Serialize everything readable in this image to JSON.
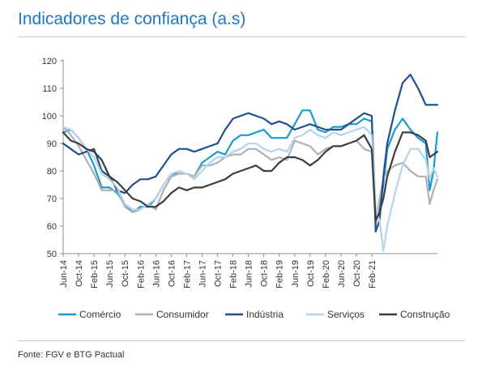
{
  "header": {
    "title": "Indicadores de confiança (a.s)"
  },
  "footer": {
    "source": "Fonte: FGV e BTG Pactual"
  },
  "chart_data": {
    "type": "line",
    "title": "Indicadores de confiança (a.s)",
    "xlabel": "",
    "ylabel": "",
    "ylim": [
      50,
      120
    ],
    "yticks": [
      50,
      60,
      70,
      80,
      90,
      100,
      110,
      120
    ],
    "grid": false,
    "legend": "bottom",
    "x_start": "Jun-14",
    "x_end": "Apr-21",
    "xtick_labels": [
      "Jun-14",
      "Oct-14",
      "Feb-15",
      "Jun-15",
      "Oct-15",
      "Feb-16",
      "Jun-16",
      "Oct-16",
      "Feb-17",
      "Jun-17",
      "Oct-17",
      "Feb-18",
      "Jun-18",
      "Oct-18",
      "Feb-19",
      "Jun-19",
      "Oct-19",
      "Feb-20",
      "Jun-20",
      "Oct-20",
      "Feb-21"
    ],
    "series": [
      {
        "name": "Comércio",
        "color": "#1a9bd0",
        "width": 2.2,
        "points": [
          [
            0,
            94
          ],
          [
            2,
            95
          ],
          [
            4,
            92
          ],
          [
            6,
            88
          ],
          [
            8,
            82
          ],
          [
            10,
            74
          ],
          [
            12,
            74
          ],
          [
            14,
            72
          ],
          [
            16,
            68
          ],
          [
            18,
            65
          ],
          [
            20,
            67
          ],
          [
            22,
            67
          ],
          [
            24,
            70
          ],
          [
            26,
            75
          ],
          [
            28,
            79
          ],
          [
            30,
            79
          ],
          [
            32,
            79
          ],
          [
            34,
            78
          ],
          [
            36,
            83
          ],
          [
            38,
            85
          ],
          [
            40,
            87
          ],
          [
            42,
            86
          ],
          [
            44,
            91
          ],
          [
            46,
            93
          ],
          [
            48,
            93
          ],
          [
            50,
            94
          ],
          [
            52,
            95
          ],
          [
            54,
            92
          ],
          [
            56,
            92
          ],
          [
            58,
            92
          ],
          [
            60,
            97
          ],
          [
            62,
            102
          ],
          [
            64,
            102
          ],
          [
            66,
            95
          ],
          [
            68,
            94
          ],
          [
            70,
            96
          ],
          [
            72,
            96
          ],
          [
            74,
            97
          ],
          [
            76,
            97
          ],
          [
            78,
            99
          ],
          [
            80,
            98
          ],
          [
            81,
            65
          ],
          [
            82,
            66
          ],
          [
            83,
            75
          ],
          [
            84,
            88
          ],
          [
            86,
            95
          ],
          [
            88,
            99
          ],
          [
            90,
            95
          ],
          [
            92,
            92
          ],
          [
            94,
            90
          ],
          [
            95,
            73
          ],
          [
            96,
            80
          ],
          [
            97,
            94
          ]
        ]
      },
      {
        "name": "Consumidor",
        "color": "#b0b0b0",
        "width": 2.2,
        "points": [
          [
            0,
            96
          ],
          [
            2,
            93
          ],
          [
            4,
            89
          ],
          [
            6,
            84
          ],
          [
            8,
            79
          ],
          [
            10,
            73
          ],
          [
            12,
            73
          ],
          [
            14,
            73
          ],
          [
            16,
            67
          ],
          [
            18,
            65
          ],
          [
            20,
            66
          ],
          [
            22,
            68
          ],
          [
            24,
            66
          ],
          [
            26,
            73
          ],
          [
            28,
            78
          ],
          [
            30,
            79
          ],
          [
            32,
            79
          ],
          [
            34,
            78
          ],
          [
            36,
            82
          ],
          [
            38,
            82
          ],
          [
            40,
            83
          ],
          [
            42,
            85
          ],
          [
            44,
            86
          ],
          [
            46,
            86
          ],
          [
            48,
            88
          ],
          [
            50,
            88
          ],
          [
            52,
            86
          ],
          [
            54,
            84
          ],
          [
            56,
            85
          ],
          [
            58,
            84
          ],
          [
            60,
            91
          ],
          [
            62,
            90
          ],
          [
            64,
            89
          ],
          [
            66,
            86
          ],
          [
            68,
            88
          ],
          [
            70,
            89
          ],
          [
            72,
            89
          ],
          [
            74,
            90
          ],
          [
            76,
            91
          ],
          [
            78,
            88
          ],
          [
            80,
            87
          ],
          [
            81,
            60
          ],
          [
            82,
            70
          ],
          [
            83,
            77
          ],
          [
            84,
            80
          ],
          [
            86,
            82
          ],
          [
            88,
            83
          ],
          [
            90,
            80
          ],
          [
            92,
            78
          ],
          [
            94,
            78
          ],
          [
            95,
            68
          ],
          [
            96,
            73
          ],
          [
            97,
            77
          ]
        ]
      },
      {
        "name": "Indústria",
        "color": "#1f4f8f",
        "width": 2.2,
        "points": [
          [
            0,
            90
          ],
          [
            2,
            88
          ],
          [
            4,
            86
          ],
          [
            6,
            87
          ],
          [
            8,
            88
          ],
          [
            10,
            80
          ],
          [
            12,
            78
          ],
          [
            14,
            73
          ],
          [
            16,
            72
          ],
          [
            18,
            75
          ],
          [
            20,
            77
          ],
          [
            22,
            77
          ],
          [
            24,
            78
          ],
          [
            26,
            82
          ],
          [
            28,
            86
          ],
          [
            30,
            88
          ],
          [
            32,
            88
          ],
          [
            34,
            87
          ],
          [
            36,
            88
          ],
          [
            38,
            89
          ],
          [
            40,
            90
          ],
          [
            42,
            95
          ],
          [
            44,
            99
          ],
          [
            46,
            100
          ],
          [
            48,
            101
          ],
          [
            50,
            100
          ],
          [
            52,
            99
          ],
          [
            54,
            97
          ],
          [
            56,
            98
          ],
          [
            58,
            97
          ],
          [
            60,
            95
          ],
          [
            62,
            96
          ],
          [
            64,
            97
          ],
          [
            66,
            96
          ],
          [
            68,
            95
          ],
          [
            70,
            95
          ],
          [
            72,
            95
          ],
          [
            74,
            97
          ],
          [
            76,
            99
          ],
          [
            78,
            101
          ],
          [
            80,
            100
          ],
          [
            81,
            58
          ],
          [
            82,
            62
          ],
          [
            83,
            78
          ],
          [
            84,
            90
          ],
          [
            86,
            102
          ],
          [
            88,
            112
          ],
          [
            90,
            115
          ],
          [
            92,
            110
          ],
          [
            94,
            104
          ],
          [
            96,
            104
          ],
          [
            97,
            104
          ]
        ]
      },
      {
        "name": "Serviços",
        "color": "#b4d4ec",
        "width": 2.2,
        "points": [
          [
            0,
            96
          ],
          [
            2,
            95
          ],
          [
            4,
            92
          ],
          [
            6,
            88
          ],
          [
            8,
            85
          ],
          [
            10,
            79
          ],
          [
            12,
            77
          ],
          [
            14,
            74
          ],
          [
            16,
            68
          ],
          [
            18,
            66
          ],
          [
            20,
            66
          ],
          [
            22,
            68
          ],
          [
            24,
            70
          ],
          [
            26,
            75
          ],
          [
            28,
            79
          ],
          [
            30,
            80
          ],
          [
            32,
            79
          ],
          [
            34,
            77
          ],
          [
            36,
            80
          ],
          [
            38,
            83
          ],
          [
            40,
            85
          ],
          [
            42,
            85
          ],
          [
            44,
            87
          ],
          [
            46,
            88
          ],
          [
            48,
            90
          ],
          [
            50,
            90
          ],
          [
            52,
            88
          ],
          [
            54,
            87
          ],
          [
            56,
            88
          ],
          [
            58,
            87
          ],
          [
            60,
            92
          ],
          [
            62,
            93
          ],
          [
            64,
            95
          ],
          [
            66,
            93
          ],
          [
            68,
            92
          ],
          [
            70,
            94
          ],
          [
            72,
            93
          ],
          [
            74,
            94
          ],
          [
            76,
            95
          ],
          [
            78,
            96
          ],
          [
            80,
            93
          ],
          [
            81,
            67
          ],
          [
            82,
            62
          ],
          [
            83,
            51
          ],
          [
            84,
            60
          ],
          [
            86,
            72
          ],
          [
            88,
            82
          ],
          [
            90,
            88
          ],
          [
            92,
            88
          ],
          [
            94,
            84
          ],
          [
            95,
            77
          ],
          [
            96,
            81
          ],
          [
            97,
            78
          ]
        ]
      },
      {
        "name": "Construção",
        "color": "#3d3d3d",
        "width": 2.2,
        "points": [
          [
            0,
            94
          ],
          [
            2,
            91
          ],
          [
            4,
            90
          ],
          [
            6,
            88
          ],
          [
            8,
            87
          ],
          [
            10,
            84
          ],
          [
            12,
            78
          ],
          [
            14,
            76
          ],
          [
            16,
            73
          ],
          [
            18,
            70
          ],
          [
            20,
            69
          ],
          [
            22,
            67
          ],
          [
            24,
            67
          ],
          [
            26,
            69
          ],
          [
            28,
            72
          ],
          [
            30,
            74
          ],
          [
            32,
            73
          ],
          [
            34,
            74
          ],
          [
            36,
            74
          ],
          [
            38,
            75
          ],
          [
            40,
            76
          ],
          [
            42,
            77
          ],
          [
            44,
            79
          ],
          [
            46,
            80
          ],
          [
            48,
            81
          ],
          [
            50,
            82
          ],
          [
            52,
            80
          ],
          [
            54,
            80
          ],
          [
            56,
            83
          ],
          [
            58,
            85
          ],
          [
            60,
            85
          ],
          [
            62,
            84
          ],
          [
            64,
            82
          ],
          [
            66,
            84
          ],
          [
            68,
            87
          ],
          [
            70,
            89
          ],
          [
            72,
            89
          ],
          [
            74,
            90
          ],
          [
            76,
            91
          ],
          [
            78,
            93
          ],
          [
            80,
            88
          ],
          [
            81,
            62
          ],
          [
            82,
            65
          ],
          [
            83,
            70
          ],
          [
            84,
            78
          ],
          [
            86,
            87
          ],
          [
            88,
            94
          ],
          [
            90,
            94
          ],
          [
            92,
            93
          ],
          [
            94,
            91
          ],
          [
            95,
            85
          ],
          [
            96,
            86
          ],
          [
            97,
            87
          ]
        ]
      }
    ]
  }
}
